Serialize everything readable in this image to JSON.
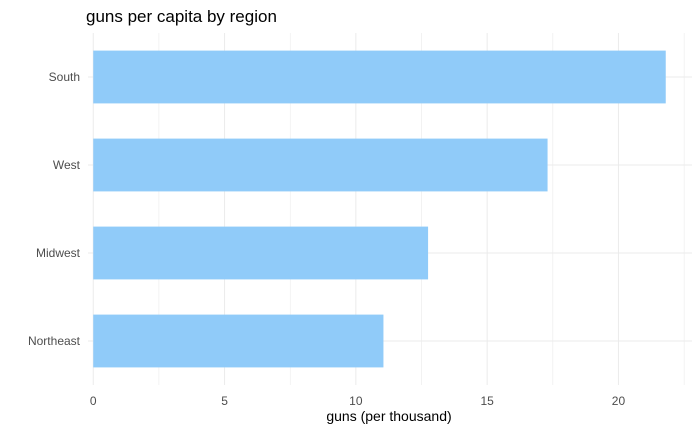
{
  "chart_data": {
    "type": "bar",
    "orientation": "horizontal",
    "title": "guns per capita by region",
    "xlabel": "guns (per thousand)",
    "ylabel": "",
    "categories": [
      "South",
      "West",
      "Midwest",
      "Northeast"
    ],
    "values": [
      21.8,
      17.3,
      12.75,
      11.05
    ],
    "xlim": [
      -0.2,
      22.8
    ],
    "xticks": [
      0,
      5,
      10,
      15,
      20
    ],
    "grid": true,
    "bar_color": "#90cbf9",
    "grid_color": "#ebebeb"
  }
}
